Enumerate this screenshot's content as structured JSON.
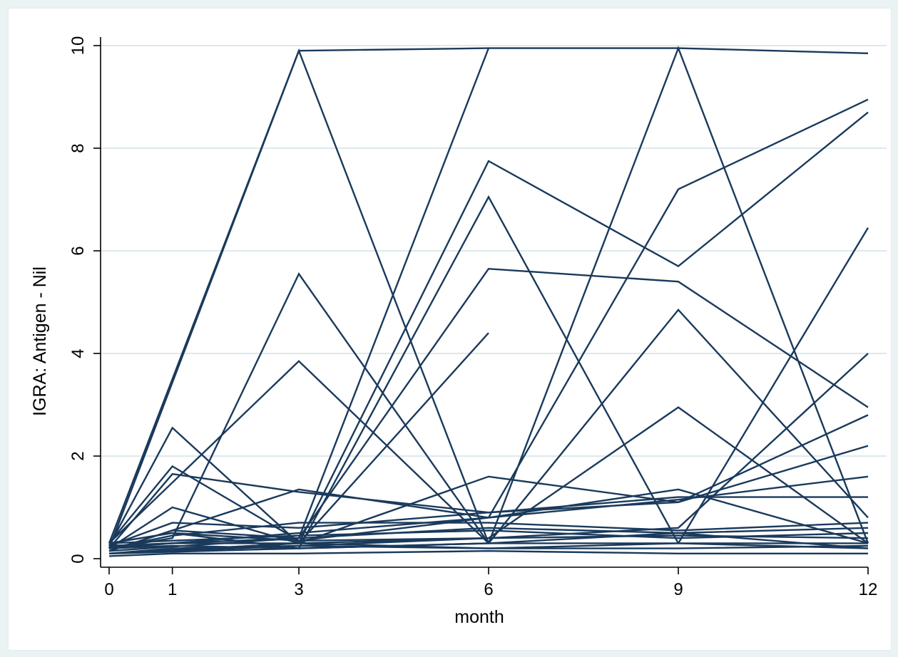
{
  "colors": {
    "page_background": "#eaf2f3",
    "plot_background": "#ffffff",
    "gridline": "#dde9ec",
    "series_line": "#1a3a5c",
    "axis": "#000000"
  },
  "chart_data": {
    "type": "line",
    "title": "",
    "xlabel": "month",
    "ylabel": "IGRA: Antigen - Nil",
    "x_ticks": [
      0,
      1,
      3,
      6,
      9,
      12
    ],
    "y_ticks": [
      0,
      2,
      4,
      6,
      8,
      10
    ],
    "xlim": [
      0,
      12
    ],
    "ylim": [
      0,
      10
    ],
    "grid": "horizontal",
    "legend": "none",
    "series": [
      {
        "x": [
          0,
          3,
          6,
          9,
          12
        ],
        "y": [
          0.3,
          9.9,
          9.95,
          9.95,
          9.85
        ]
      },
      {
        "x": [
          0,
          3,
          6
        ],
        "y": [
          0.2,
          9.9,
          0.3
        ]
      },
      {
        "x": [
          0,
          3,
          6
        ],
        "y": [
          0.15,
          0.4,
          9.95
        ]
      },
      {
        "x": [
          0,
          6,
          9,
          12
        ],
        "y": [
          0.1,
          0.3,
          9.95,
          0.3
        ]
      },
      {
        "x": [
          0,
          6,
          9,
          12
        ],
        "y": [
          0.2,
          0.8,
          7.2,
          8.95
        ]
      },
      {
        "x": [
          0,
          3,
          6,
          9,
          12
        ],
        "y": [
          0.1,
          0.3,
          7.75,
          5.7,
          8.7
        ]
      },
      {
        "x": [
          0,
          1,
          3,
          6,
          9,
          12
        ],
        "y": [
          0.3,
          0.5,
          0.2,
          7.05,
          0.3,
          0.2
        ]
      },
      {
        "x": [
          0,
          3,
          6,
          9,
          12
        ],
        "y": [
          0.25,
          0.4,
          5.65,
          5.4,
          2.95
        ]
      },
      {
        "x": [
          0,
          1,
          3,
          6,
          9,
          12
        ],
        "y": [
          0.2,
          0.4,
          5.55,
          0.3,
          0.5,
          0.2
        ]
      },
      {
        "x": [
          0,
          3,
          6
        ],
        "y": [
          0.1,
          0.3,
          4.4
        ]
      },
      {
        "x": [
          0,
          3,
          6,
          9,
          12
        ],
        "y": [
          0.3,
          3.85,
          0.3,
          4.85,
          0.8
        ]
      },
      {
        "x": [
          0,
          6,
          9,
          12
        ],
        "y": [
          0.1,
          0.4,
          2.95,
          0.3
        ]
      },
      {
        "x": [
          0,
          1,
          3,
          6,
          9,
          12
        ],
        "y": [
          0.25,
          2.55,
          0.3,
          0.2,
          0.3,
          6.45
        ]
      },
      {
        "x": [
          0,
          1,
          3,
          6,
          9,
          12
        ],
        "y": [
          0.3,
          1.8,
          0.35,
          0.4,
          0.6,
          4.0
        ]
      },
      {
        "x": [
          0,
          1,
          3,
          6,
          9,
          12
        ],
        "y": [
          0.2,
          1.65,
          1.3,
          0.9,
          1.1,
          2.8
        ]
      },
      {
        "x": [
          0,
          3,
          6,
          9,
          12
        ],
        "y": [
          0.15,
          1.35,
          0.8,
          1.35,
          0.3
        ]
      },
      {
        "x": [
          0,
          1,
          3,
          6,
          9,
          12
        ],
        "y": [
          0.2,
          1.0,
          0.3,
          1.6,
          1.1,
          2.2
        ]
      },
      {
        "x": [
          0,
          1,
          3,
          6,
          9,
          12
        ],
        "y": [
          0.3,
          0.5,
          0.35,
          0.8,
          1.15,
          1.6
        ]
      },
      {
        "x": [
          0,
          1,
          3,
          6,
          9,
          12
        ],
        "y": [
          0.25,
          0.7,
          0.6,
          0.9,
          1.2,
          1.2
        ]
      },
      {
        "x": [
          0,
          1,
          3,
          6,
          9,
          12
        ],
        "y": [
          0.2,
          0.45,
          0.7,
          0.7,
          0.55,
          0.7
        ]
      },
      {
        "x": [
          0,
          1,
          3,
          6,
          9,
          12
        ],
        "y": [
          0.15,
          0.55,
          0.4,
          0.6,
          0.5,
          0.6
        ]
      },
      {
        "x": [
          0,
          1,
          3,
          6,
          9,
          12
        ],
        "y": [
          0.3,
          0.35,
          0.45,
          0.55,
          0.4,
          0.5
        ]
      },
      {
        "x": [
          0,
          1,
          3,
          6,
          9,
          12
        ],
        "y": [
          0.25,
          0.3,
          0.3,
          0.4,
          0.45,
          0.4
        ]
      },
      {
        "x": [
          0,
          1,
          3,
          6,
          9,
          12
        ],
        "y": [
          0.2,
          0.25,
          0.2,
          0.3,
          0.3,
          0.3
        ]
      },
      {
        "x": [
          0,
          1,
          3,
          6,
          9,
          12
        ],
        "y": [
          0.1,
          0.2,
          0.25,
          0.2,
          0.2,
          0.25
        ]
      },
      {
        "x": [
          0,
          1,
          3,
          6,
          9,
          12
        ],
        "y": [
          0.05,
          0.1,
          0.1,
          0.15,
          0.1,
          0.1
        ]
      }
    ]
  }
}
